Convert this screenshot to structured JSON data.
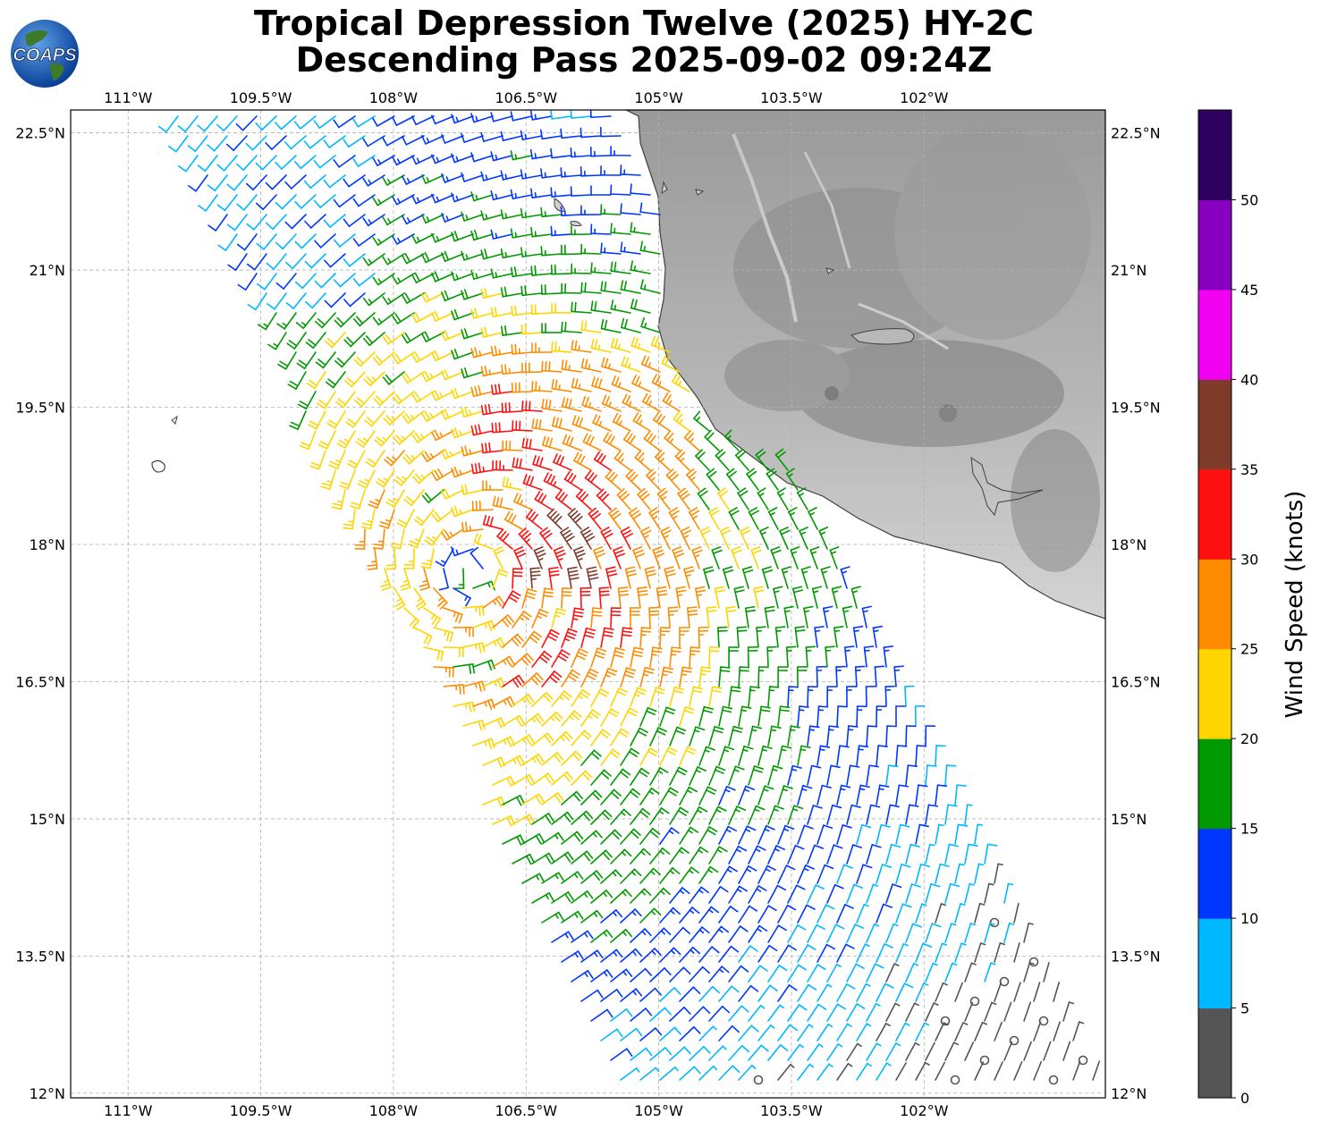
{
  "title": {
    "line1": "Tropical Depression Twelve (2025) HY-2C",
    "line2": "Descending Pass 2025-09-02 09:24Z"
  },
  "logo": {
    "text": "COAPS",
    "icon": "globe-icon"
  },
  "map": {
    "lon_range": [
      -111.65,
      -99.95
    ],
    "lat_range": [
      11.95,
      22.75
    ],
    "lon_ticks": [
      -111,
      -109.5,
      -108,
      -106.5,
      -105,
      -103.5,
      -102
    ],
    "lon_tick_labels": [
      "111°W",
      "109.5°W",
      "108°W",
      "106.5°W",
      "105°W",
      "103.5°W",
      "102°W"
    ],
    "lat_ticks": [
      22.5,
      21,
      19.5,
      18,
      16.5,
      15,
      13.5,
      12
    ],
    "lat_tick_labels": [
      "22.5°N",
      "21°N",
      "19.5°N",
      "18°N",
      "16.5°N",
      "15°N",
      "13.5°N",
      "12°N"
    ],
    "gridlines": true,
    "storm_center": {
      "lon": -107.1,
      "lat": 17.7
    },
    "land_color": "#b0b0b0",
    "ocean_color": "#ffffff"
  },
  "colorbar": {
    "label": "Wind Speed (knots)",
    "ticks": [
      "0",
      "5",
      "10",
      "15",
      "20",
      "25",
      "30",
      "35",
      "40",
      "45",
      "50"
    ],
    "colors": [
      "#555555",
      "#00b8ff",
      "#0037ff",
      "#009900",
      "#ffd500",
      "#ff8c00",
      "#ff1010",
      "#803a2a",
      "#f200f2",
      "#8800c0",
      "#2e0060"
    ]
  }
}
